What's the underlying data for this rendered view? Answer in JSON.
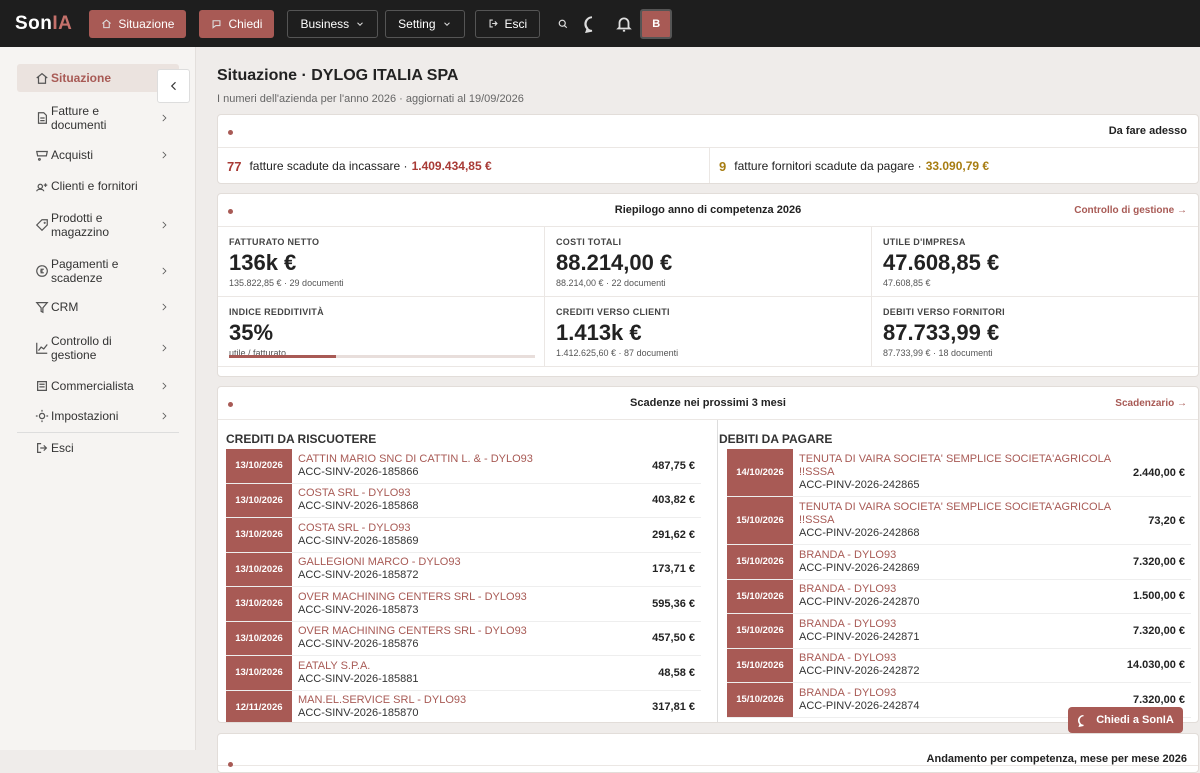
{
  "nav": {
    "brand": {
      "prefix": "Son",
      "accent": "IA"
    },
    "primary": [
      "Situazione",
      "Chiedi"
    ],
    "menus": [
      "Business",
      "Setting"
    ],
    "logout": "Esci",
    "avatar": "B"
  },
  "sidebar": {
    "items": [
      "Situazione",
      "Fatture e documenti",
      "Acquisti",
      "Clienti e fornitori",
      "Prodotti e magazzino",
      "Pagamenti e scadenze",
      "CRM",
      "Controllo di gestione",
      "Commercialista",
      "Impostazioni"
    ],
    "logout": "Esci"
  },
  "header": {
    "title": "Situazione · DYLOG ITALIA SPA",
    "subtitle": "I numeri dell'azienda per l'anno 2026 · aggiornati al 19/09/2026"
  },
  "todo": {
    "title": "Da fare adesso",
    "items": [
      {
        "count": "77",
        "text": "fatture scadute da incassare ·",
        "amount": "1.409.434,85 €"
      },
      {
        "count": "9",
        "text": "fatture fornitori scadute da pagare ·",
        "amount": "33.090,79 €"
      }
    ]
  },
  "summary": {
    "title": "Riepilogo anno di competenza 2026",
    "link": "Controllo di gestione →",
    "kpis": [
      {
        "label": "FATTURATO NETTO",
        "value": "136k €",
        "sub": "135.822,85 € · 29 documenti"
      },
      {
        "label": "COSTI TOTALI",
        "value": "88.214,00 €",
        "sub": "88.214,00 € · 22 documenti"
      },
      {
        "label": "UTILE D'IMPRESA",
        "value": "47.608,85 €",
        "sub": "47.608,85 €"
      },
      {
        "label": "INDICE REDDITIVITÀ",
        "value": "35%",
        "sub": "utile / fatturato"
      },
      {
        "label": "CREDITI VERSO CLIENTI",
        "value": "1.413k €",
        "sub": "1.412.625,60 € · 87 documenti"
      },
      {
        "label": "DEBITI VERSO FORNITORI",
        "value": "87.733,99 €",
        "sub": "87.733,99 € · 18 documenti"
      }
    ]
  },
  "deadlines": {
    "title": "Scadenze nei prossimi 3 mesi",
    "link": "Scadenzario →",
    "columns": [
      {
        "title": "CREDITI DA RISCUOTERE",
        "rows": [
          {
            "date": "13/10/2026",
            "name": "CATTIN MARIO SNC DI CATTIN L. & - DYLO93",
            "code": "ACC-SINV-2026-185866",
            "amount": "487,75 €"
          },
          {
            "date": "13/10/2026",
            "name": "COSTA SRL - DYLO93",
            "code": "ACC-SINV-2026-185868",
            "amount": "403,82 €"
          },
          {
            "date": "13/10/2026",
            "name": "COSTA SRL - DYLO93",
            "code": "ACC-SINV-2026-185869",
            "amount": "291,62 €"
          },
          {
            "date": "13/10/2026",
            "name": "GALLEGIONI MARCO - DYLO93",
            "code": "ACC-SINV-2026-185872",
            "amount": "173,71 €"
          },
          {
            "date": "13/10/2026",
            "name": "OVER MACHINING CENTERS SRL - DYLO93",
            "code": "ACC-SINV-2026-185873",
            "amount": "595,36 €"
          },
          {
            "date": "13/10/2026",
            "name": "OVER MACHINING CENTERS SRL - DYLO93",
            "code": "ACC-SINV-2026-185876",
            "amount": "457,50 €"
          },
          {
            "date": "13/10/2026",
            "name": "EATALY S.P.A.",
            "code": "ACC-SINV-2026-185881",
            "amount": "48,58 €"
          },
          {
            "date": "12/11/2026",
            "name": "MAN.EL.SERVICE SRL - DYLO93",
            "code": "ACC-SINV-2026-185870",
            "amount": "317,81 €"
          }
        ]
      },
      {
        "title": "DEBITI DA PAGARE",
        "rows": [
          {
            "date": "14/10/2026",
            "name": "TENUTA DI VAIRA SOCIETA' SEMPLICE SOCIETA'AGRICOLA !!SSSA",
            "code": "ACC-PINV-2026-242865",
            "amount": "2.440,00 €"
          },
          {
            "date": "15/10/2026",
            "name": "TENUTA DI VAIRA SOCIETA' SEMPLICE SOCIETA'AGRICOLA !!SSSA",
            "code": "ACC-PINV-2026-242868",
            "amount": "73,20 €"
          },
          {
            "date": "15/10/2026",
            "name": "BRANDA - DYLO93",
            "code": "ACC-PINV-2026-242869",
            "amount": "7.320,00 €"
          },
          {
            "date": "15/10/2026",
            "name": "BRANDA - DYLO93",
            "code": "ACC-PINV-2026-242870",
            "amount": "1.500,00 €"
          },
          {
            "date": "15/10/2026",
            "name": "BRANDA - DYLO93",
            "code": "ACC-PINV-2026-242871",
            "amount": "7.320,00 €"
          },
          {
            "date": "15/10/2026",
            "name": "BRANDA - DYLO93",
            "code": "ACC-PINV-2026-242872",
            "amount": "14.030,00 €"
          },
          {
            "date": "15/10/2026",
            "name": "BRANDA - DYLO93",
            "code": "ACC-PINV-2026-242874",
            "amount": "7.320,00 €"
          }
        ]
      }
    ]
  },
  "trend": {
    "title": "Andamento per competenza, mese per mese 2026"
  },
  "assistant": {
    "label": "Chiedi a SonIA"
  }
}
